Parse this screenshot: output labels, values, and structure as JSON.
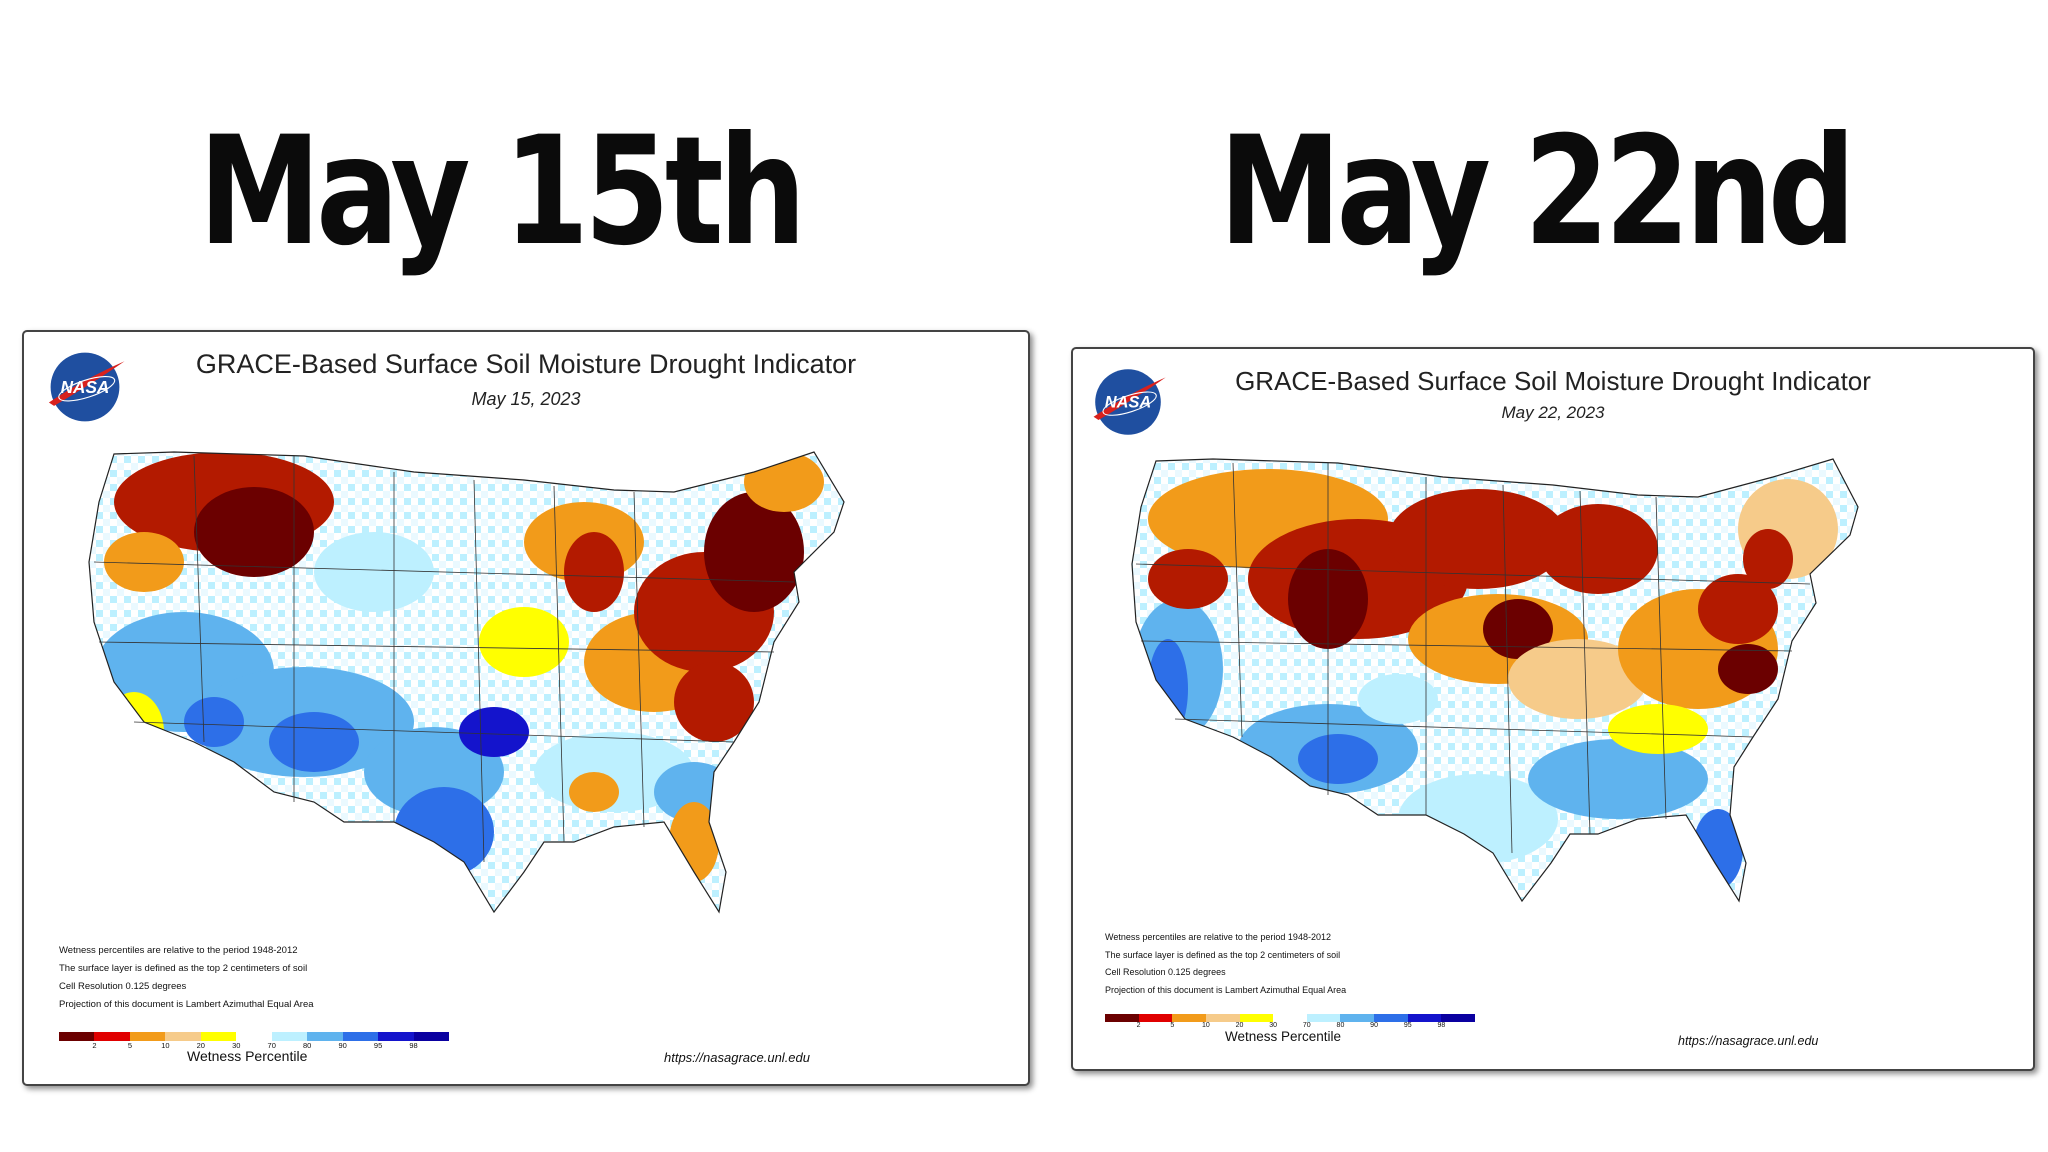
{
  "headings": {
    "left": "May 15th",
    "right": "May 22nd"
  },
  "map_title": "GRACE-Based Surface Soil  Moisture Drought Indicator",
  "logo_text": "NASA",
  "panels": [
    {
      "date": "May 15, 2023"
    },
    {
      "date": "May 22, 2023"
    }
  ],
  "notes": [
    "Wetness percentiles are relative to the period 1948-2012",
    "The surface layer is defined as the top 2 centimeters of soil",
    "Cell Resolution 0.125 degrees",
    "Projection of this document is Lambert Azimuthal Equal Area"
  ],
  "legend": {
    "label": "Wetness Percentile",
    "ticks": [
      "2",
      "5",
      "10",
      "20",
      "30",
      "70",
      "80",
      "90",
      "95",
      "98"
    ],
    "colors": [
      "#6b0000",
      "#e00000",
      "#f29b1a",
      "#f6cb8a",
      "#ffff00",
      "#ffffff",
      "#bdf0ff",
      "#5fb3ee",
      "#2d6fe8",
      "#1414cc",
      "#0a00a0"
    ]
  },
  "url": "https://nasagrace.unl.edu",
  "palette": {
    "extreme_dry": "#6b0000",
    "dry": "#b31a00",
    "moderate_dry": "#f29b1a",
    "slight_dry": "#f6cb8a",
    "abnormal_dry": "#ffff00",
    "normal": "#ffffff",
    "slight_wet": "#bdf0ff",
    "wet": "#5fb3ee",
    "very_wet": "#2d6fe8",
    "extreme_wet": "#1414cc"
  }
}
